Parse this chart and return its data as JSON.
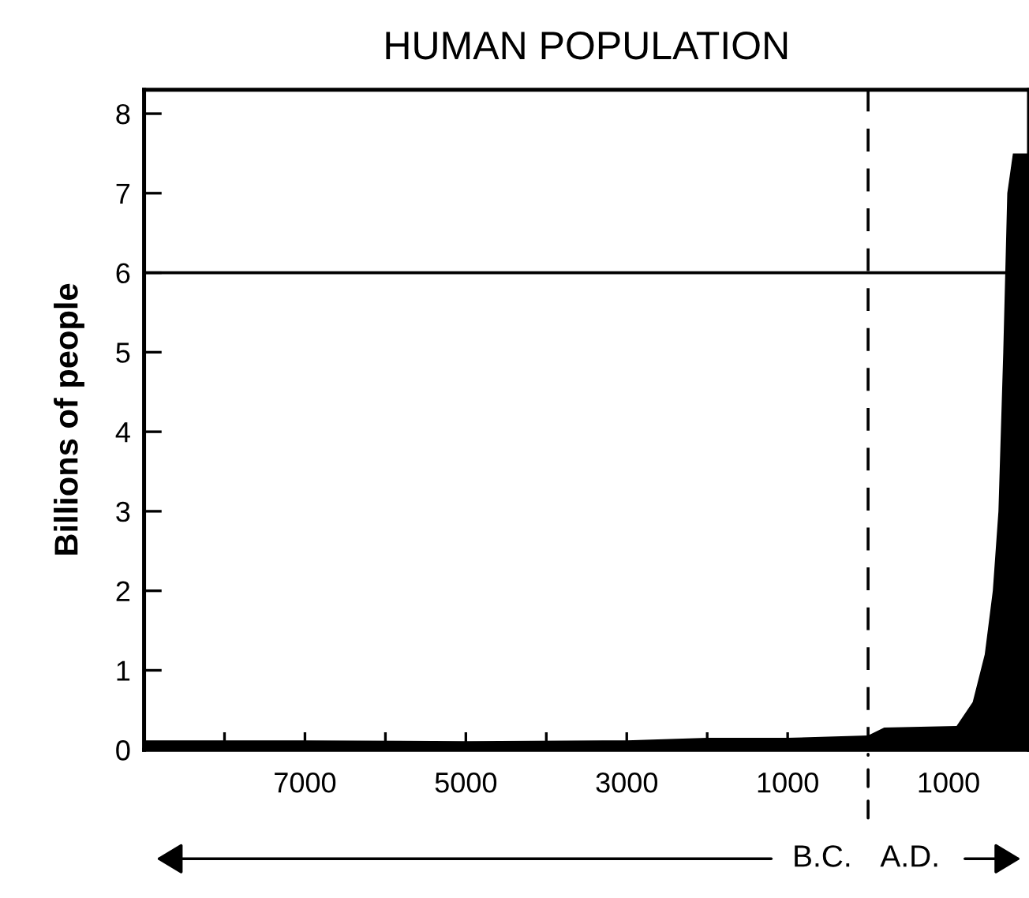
{
  "chart_data": {
    "type": "area",
    "title": "HUMAN POPULATION",
    "ylabel": "Billions of people",
    "x": [
      -9000,
      -7000,
      -5000,
      -3000,
      -2000,
      -1000,
      0,
      200,
      1100,
      1300,
      1450,
      1550,
      1620,
      1680,
      1730,
      1800,
      2000
    ],
    "series": [
      {
        "color": "#000000",
        "values": [
          0.12,
          0.12,
          0.11,
          0.12,
          0.15,
          0.15,
          0.18,
          0.28,
          0.3,
          0.6,
          1.2,
          2,
          3,
          5,
          7,
          7.5,
          7.5
        ]
      }
    ],
    "xlim": [
      -9000,
      2000
    ],
    "xticks": [
      {
        "value": -8000,
        "label": null
      },
      {
        "value": -7000,
        "label": "7000"
      },
      {
        "value": -6000,
        "label": null
      },
      {
        "value": -5000,
        "label": "5000"
      },
      {
        "value": -4000,
        "label": null
      },
      {
        "value": -3000,
        "label": "3000"
      },
      {
        "value": -2000,
        "label": null
      },
      {
        "value": -1000,
        "label": "1000"
      },
      {
        "value": 1000,
        "label": "1000"
      },
      {
        "value": 2000,
        "label": null
      }
    ],
    "ylim": [
      0,
      8.3
    ],
    "yticks": [
      0,
      1,
      2,
      3,
      4,
      5,
      6,
      7,
      8
    ],
    "ref_lines": [
      {
        "axis": "x",
        "value": 0,
        "line_style": "dashed",
        "color": "#000000"
      },
      {
        "axis": "y",
        "value": 6,
        "line_style": "solid",
        "color": "#000000"
      }
    ],
    "annotations": [
      "B.C.",
      "A.D."
    ],
    "grid": false
  }
}
